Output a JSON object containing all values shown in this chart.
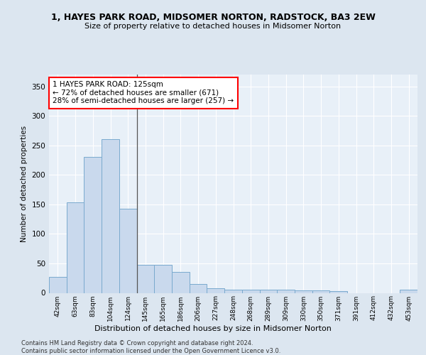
{
  "title1": "1, HAYES PARK ROAD, MIDSOMER NORTON, RADSTOCK, BA3 2EW",
  "title2": "Size of property relative to detached houses in Midsomer Norton",
  "xlabel": "Distribution of detached houses by size in Midsomer Norton",
  "ylabel": "Number of detached properties",
  "categories": [
    "42sqm",
    "63sqm",
    "83sqm",
    "104sqm",
    "124sqm",
    "145sqm",
    "165sqm",
    "186sqm",
    "206sqm",
    "227sqm",
    "248sqm",
    "268sqm",
    "289sqm",
    "309sqm",
    "330sqm",
    "350sqm",
    "371sqm",
    "391sqm",
    "412sqm",
    "432sqm",
    "453sqm"
  ],
  "values": [
    27,
    153,
    230,
    260,
    143,
    48,
    48,
    35,
    15,
    8,
    6,
    6,
    5,
    5,
    4,
    4,
    3,
    0,
    0,
    0,
    5
  ],
  "bar_color": "#c9d9ed",
  "bar_edge_color": "#7aaace",
  "highlight_index": 4,
  "highlight_line_color": "#555555",
  "annotation_text": "1 HAYES PARK ROAD: 125sqm\n← 72% of detached houses are smaller (671)\n28% of semi-detached houses are larger (257) →",
  "annotation_box_color": "white",
  "annotation_box_edge_color": "red",
  "ylim": [
    0,
    370
  ],
  "yticks": [
    0,
    50,
    100,
    150,
    200,
    250,
    300,
    350
  ],
  "footer1": "Contains HM Land Registry data © Crown copyright and database right 2024.",
  "footer2": "Contains public sector information licensed under the Open Government Licence v3.0.",
  "bg_color": "#dce6f0",
  "plot_bg_color": "#e8f0f8"
}
